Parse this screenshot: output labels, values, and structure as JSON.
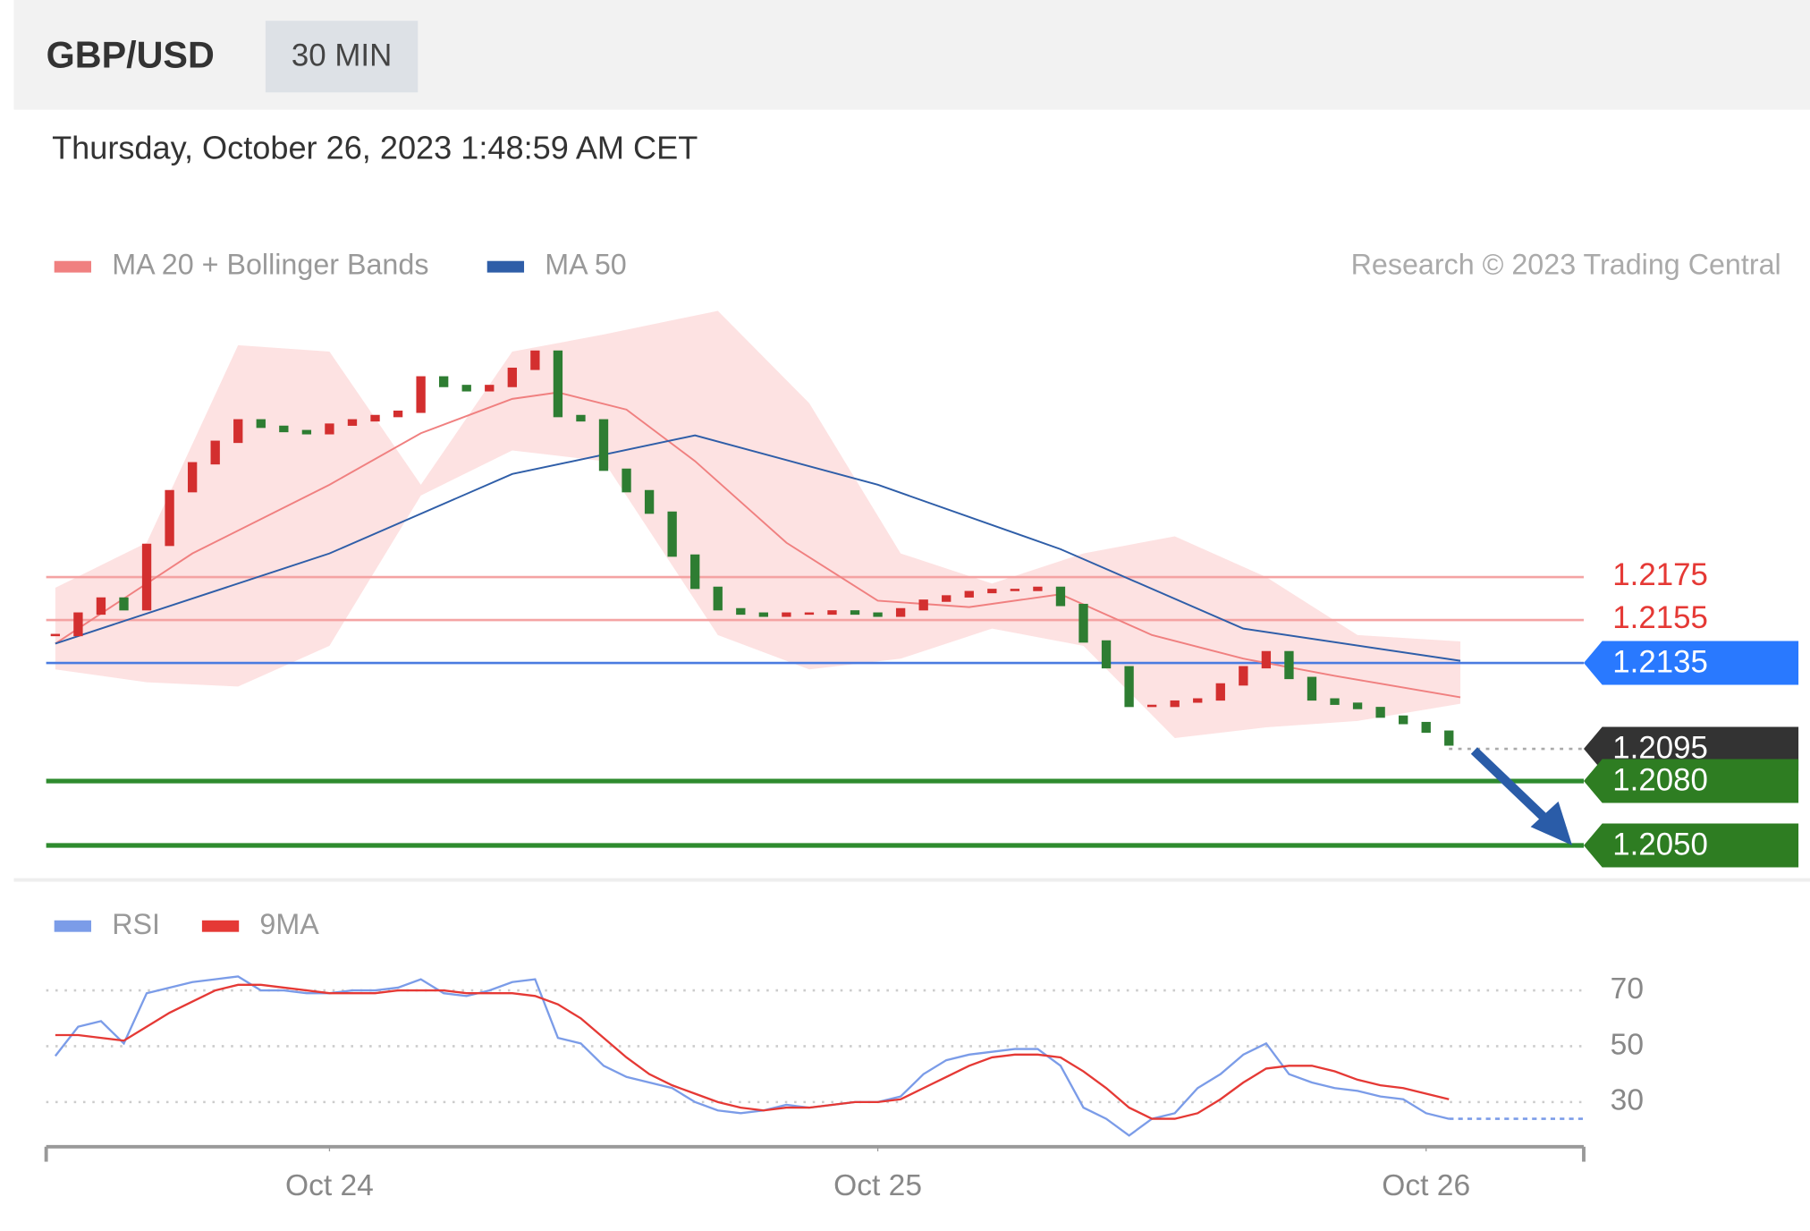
{
  "symbol": "GBP/USD",
  "interval": "30 MIN",
  "timestamp": "Thursday, October 26, 2023 1:48:59 AM CET",
  "credit": "Research © 2023 Trading Central",
  "chart_data": [
    {
      "type": "candlestick",
      "xlim": [
        -0.4,
        66.9
      ],
      "ylim": [
        1.2035,
        1.239
      ],
      "up_color": "#d32f2f",
      "down_color": "#2e7d32",
      "x": [
        0,
        1,
        2,
        3,
        4,
        5,
        6,
        7,
        8,
        9,
        10,
        11,
        12,
        13,
        14,
        15,
        16,
        17,
        18,
        19,
        20,
        21,
        22,
        23,
        24,
        25,
        26,
        27,
        28,
        29,
        30,
        31,
        32,
        33,
        34,
        35,
        36,
        37,
        38,
        39,
        40,
        41,
        42,
        43,
        44,
        45,
        46,
        47,
        48,
        49,
        50,
        51,
        52,
        53,
        54,
        55,
        56,
        57,
        58,
        59,
        60,
        61
      ],
      "close": [
        1.2148,
        1.2158,
        1.2165,
        1.216,
        1.219,
        1.2215,
        1.2228,
        1.2238,
        1.2248,
        1.2245,
        1.2243,
        1.2242,
        1.2246,
        1.2248,
        1.225,
        1.2252,
        1.2268,
        1.2264,
        1.2262,
        1.2264,
        1.2272,
        1.228,
        1.225,
        1.2248,
        1.2225,
        1.2215,
        1.2205,
        1.2185,
        1.217,
        1.216,
        1.2158,
        1.2157,
        1.2158,
        1.2158,
        1.2159,
        1.2158,
        1.2157,
        1.216,
        1.2164,
        1.2166,
        1.2168,
        1.2169,
        1.2169,
        1.217,
        1.2162,
        1.2145,
        1.2133,
        1.2115,
        1.2115,
        1.2117,
        1.2118,
        1.2125,
        1.2133,
        1.214,
        1.2128,
        1.2118,
        1.2116,
        1.2114,
        1.211,
        1.2107,
        1.2103,
        1.2097
      ],
      "series": [
        {
          "name": "MA 20 + Bollinger Bands",
          "color": "#f08080",
          "band_color": "#fde2e2",
          "x": [
            0,
            6,
            12,
            16,
            20,
            22,
            25,
            28,
            32,
            36,
            40,
            44,
            48,
            52,
            56,
            61.5
          ],
          "values": [
            1.2144,
            1.2186,
            1.2218,
            1.2242,
            1.2258,
            1.2261,
            1.2253,
            1.2229,
            1.2191,
            1.2164,
            1.2161,
            1.2167,
            1.2148,
            1.2137,
            1.2129,
            1.2119
          ],
          "band_x": [
            0,
            4,
            8,
            12,
            16,
            20,
            24,
            29,
            33,
            37,
            41,
            45,
            49,
            53,
            57,
            61.5
          ],
          "upper": [
            1.217,
            1.2191,
            1.2283,
            1.228,
            1.2218,
            1.228,
            1.2288,
            1.2299,
            1.2256,
            1.2186,
            1.2172,
            1.2186,
            1.2194,
            1.2175,
            1.2148,
            1.2145
          ],
          "lower": [
            1.2132,
            1.2126,
            1.2124,
            1.2143,
            1.2213,
            1.2234,
            1.2229,
            1.2148,
            1.2132,
            1.2137,
            1.2151,
            1.2143,
            1.21,
            1.2105,
            1.2108,
            1.2116
          ]
        },
        {
          "name": "MA 50",
          "color": "#2f5ea8",
          "x": [
            0,
            12,
            20,
            28,
            36,
            44,
            52,
            61.5
          ],
          "values": [
            1.2144,
            1.2186,
            1.2223,
            1.2241,
            1.2218,
            1.2188,
            1.2151,
            1.2136
          ]
        }
      ],
      "levels": [
        {
          "value": 1.2175,
          "label": "1.2175",
          "color": "#f4a3a3",
          "text_color": "#e53935",
          "style": "text"
        },
        {
          "value": 1.2155,
          "label": "1.2155",
          "color": "#f4a3a3",
          "text_color": "#e53935",
          "style": "text"
        },
        {
          "value": 1.2135,
          "label": "1.2135",
          "color": "#4a7be0",
          "tag_color": "#2979ff",
          "style": "tag"
        },
        {
          "value": 1.2095,
          "label": "1.2095",
          "color": "#aaaaaa",
          "tag_color": "#333333",
          "style": "current"
        },
        {
          "value": 1.208,
          "label": "1.2080",
          "color": "#2e8b2e",
          "tag_color": "#2e7d22",
          "style": "tag"
        },
        {
          "value": 1.205,
          "label": "1.2050",
          "color": "#2e8b2e",
          "tag_color": "#2e7d22",
          "style": "tag"
        }
      ]
    },
    {
      "type": "line",
      "xlim": [
        -0.4,
        66.9
      ],
      "xticks": [
        {
          "value": 12,
          "label": "Oct 24"
        },
        {
          "value": 36,
          "label": "Oct 25"
        },
        {
          "value": 60,
          "label": "Oct 26"
        }
      ],
      "ylim": [
        14,
        98
      ],
      "yticks": [
        30,
        50,
        70
      ],
      "grid": true,
      "x": [
        0,
        1,
        2,
        3,
        4,
        5,
        6,
        7,
        8,
        9,
        10,
        11,
        12,
        13,
        14,
        15,
        16,
        17,
        18,
        19,
        20,
        21,
        22,
        23,
        24,
        25,
        26,
        27,
        28,
        29,
        30,
        31,
        32,
        33,
        34,
        35,
        36,
        37,
        38,
        39,
        40,
        41,
        42,
        43,
        44,
        45,
        46,
        47,
        48,
        49,
        50,
        51,
        52,
        53,
        54,
        55,
        56,
        57,
        58,
        59,
        60,
        61
      ],
      "series": [
        {
          "name": "RSI",
          "color": "#7b9ce8",
          "values": [
            46.5,
            57,
            59,
            51,
            69,
            71,
            73,
            74,
            75,
            70,
            70,
            69,
            69,
            70,
            70,
            71,
            74,
            69,
            68,
            70,
            73,
            74,
            53,
            51,
            43,
            39,
            37,
            35,
            30,
            27,
            26,
            27,
            29,
            28,
            29,
            30,
            30,
            32,
            40,
            45,
            47,
            48,
            49,
            49,
            43,
            28,
            24,
            18,
            24,
            26,
            35,
            40,
            47,
            51,
            40,
            37,
            35,
            34,
            32,
            31,
            26,
            24
          ]
        },
        {
          "name": "9MA",
          "color": "#e53935",
          "values": [
            54,
            54,
            53,
            52,
            57,
            62,
            66,
            70,
            72,
            72,
            71,
            70,
            69,
            69,
            69,
            70,
            70,
            70,
            69,
            69,
            69,
            68,
            65,
            60,
            53,
            46,
            40,
            36,
            33,
            30,
            28,
            27,
            28,
            28,
            29,
            30,
            30,
            31,
            35,
            39,
            43,
            46,
            47,
            47,
            46,
            41,
            35,
            28,
            24,
            24,
            26,
            31,
            37,
            42,
            43,
            43,
            41,
            38,
            36,
            35,
            33,
            31
          ]
        }
      ]
    }
  ]
}
